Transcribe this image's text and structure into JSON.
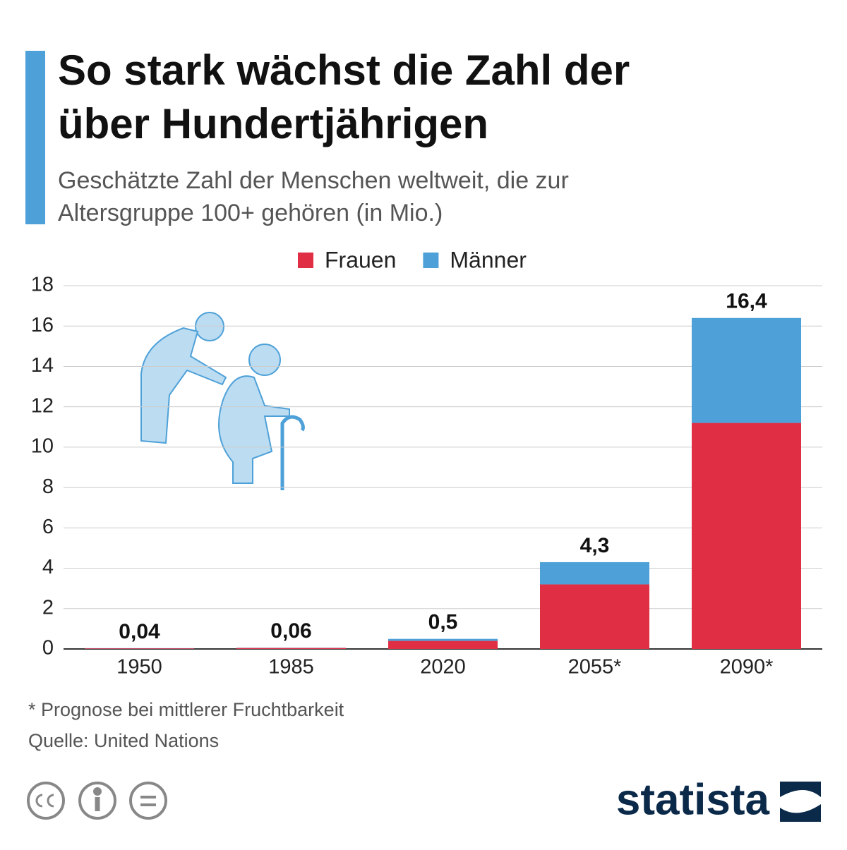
{
  "chart_data": {
    "type": "stacked-bar",
    "title": [
      "So stark wächst die Zahl der",
      "über Hundertjährigen"
    ],
    "subtitle": [
      "Geschätzte Zahl der Menschen weltweit, die zur",
      "Altersgruppe 100+ gehören (in Mio.)"
    ],
    "categories": [
      "1950",
      "1985",
      "2020",
      "2055*",
      "2090*"
    ],
    "series": [
      {
        "name": "Frauen",
        "color": "#e02e44",
        "values": [
          0.03,
          0.05,
          0.4,
          3.2,
          11.2
        ]
      },
      {
        "name": "Männer",
        "color": "#4ea1d8",
        "values": [
          0.01,
          0.01,
          0.1,
          1.1,
          5.2
        ]
      }
    ],
    "totals": [
      0.04,
      0.06,
      0.5,
      4.3,
      16.4
    ],
    "total_labels": [
      "0,04",
      "0,06",
      "0,5",
      "4,3",
      "16,4"
    ],
    "ylim": [
      0,
      18
    ],
    "yticks": [
      0,
      2,
      4,
      6,
      8,
      10,
      12,
      14,
      16,
      18
    ],
    "grid": true,
    "footnote": "* Prognose bei mittlerer Fruchtbarkeit",
    "source": "Quelle: United Nations",
    "brand": "statista"
  }
}
